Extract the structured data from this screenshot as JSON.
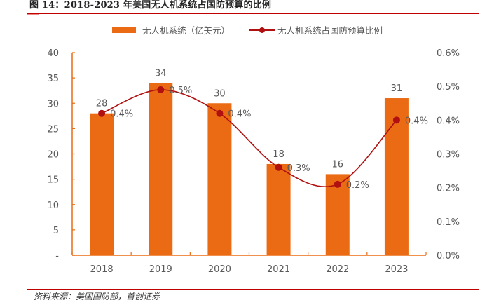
{
  "figure": {
    "title": "图 14：2018-2023 年美国无人机系统占国防预算的比例",
    "source": "资料来源：美国国防部，首创证券"
  },
  "colors": {
    "bar": "#ea6b14",
    "line": "#b01010",
    "axis": "#ea6b14",
    "rule": "#c00000",
    "tick_text": "#595959"
  },
  "chart_data": {
    "type": "bar+line",
    "title": "2018-2023 年美国无人机系统占国防预算的比例",
    "categories": [
      "2018",
      "2019",
      "2020",
      "2021",
      "2022",
      "2023"
    ],
    "series": [
      {
        "name": "无人机系统（亿美元）",
        "type": "bar",
        "axis": "left",
        "values": [
          28,
          34,
          30,
          18,
          16,
          31
        ],
        "labels": [
          "28",
          "34",
          "30",
          "18",
          "16",
          "31"
        ]
      },
      {
        "name": "无人机系统占国防预算比例",
        "type": "line",
        "smooth": true,
        "axis": "right",
        "values": [
          0.42,
          0.49,
          0.42,
          0.26,
          0.21,
          0.4
        ],
        "labels": [
          "0.4%",
          "0.5%",
          "0.4%",
          "0.3%",
          "0.2%",
          "0.4%"
        ]
      }
    ],
    "left_axis": {
      "ylim": [
        0,
        40
      ],
      "ticks": [
        0,
        5,
        10,
        15,
        20,
        25,
        30,
        35,
        40
      ],
      "tick_labels": [
        "-",
        "5",
        "10",
        "15",
        "20",
        "25",
        "30",
        "35",
        "40"
      ]
    },
    "right_axis": {
      "ylim": [
        0,
        0.6
      ],
      "unit": "%",
      "ticks": [
        0,
        0.1,
        0.2,
        0.3,
        0.4,
        0.5,
        0.6
      ],
      "tick_labels": [
        "0.0%",
        "0.1%",
        "0.2%",
        "0.3%",
        "0.4%",
        "0.5%",
        "0.6%"
      ]
    },
    "xlabel": "",
    "ylabel": "",
    "grid": false,
    "legend_position": "top-center"
  }
}
